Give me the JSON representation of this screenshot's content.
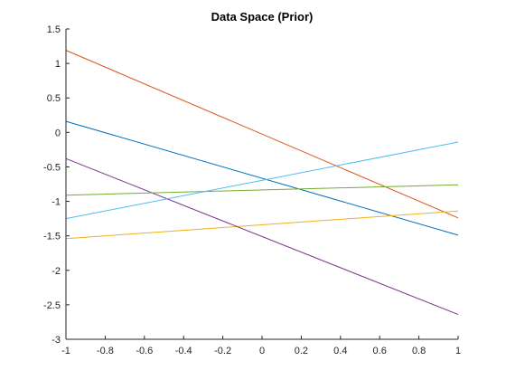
{
  "chart_data": {
    "type": "line",
    "title": "Data Space (Prior)",
    "xlabel": "",
    "ylabel": "",
    "xlim": [
      -1,
      1
    ],
    "ylim": [
      -3,
      1.5
    ],
    "grid": false,
    "xticks": [
      -1,
      -0.8,
      -0.6,
      -0.4,
      -0.2,
      0,
      0.2,
      0.4,
      0.6,
      0.8,
      1
    ],
    "yticks": [
      -3,
      -2.5,
      -2,
      -1.5,
      -1,
      -0.5,
      0,
      0.5,
      1,
      1.5
    ],
    "xtick_labels": [
      "-1",
      "-0.8",
      "-0.6",
      "-0.4",
      "-0.2",
      "0",
      "0.2",
      "0.4",
      "0.6",
      "0.8",
      "1"
    ],
    "ytick_labels": [
      "-3",
      "-2.5",
      "-2",
      "-1.5",
      "-1",
      "-0.5",
      "0",
      "0.5",
      "1",
      "1.5"
    ],
    "series": [
      {
        "color": "#0072BD",
        "x": [
          -1,
          1
        ],
        "y": [
          0.16,
          -1.49
        ]
      },
      {
        "color": "#D95319",
        "x": [
          -1,
          1
        ],
        "y": [
          1.19,
          -1.24
        ]
      },
      {
        "color": "#EDB120",
        "x": [
          -1,
          1
        ],
        "y": [
          -1.54,
          -1.14
        ]
      },
      {
        "color": "#7E2F8E",
        "x": [
          -1,
          1
        ],
        "y": [
          -0.38,
          -2.64
        ]
      },
      {
        "color": "#77AC30",
        "x": [
          -1,
          1
        ],
        "y": [
          -0.91,
          -0.76
        ]
      },
      {
        "color": "#4DBEEE",
        "x": [
          -1,
          1
        ],
        "y": [
          -1.25,
          -0.14
        ]
      }
    ]
  }
}
